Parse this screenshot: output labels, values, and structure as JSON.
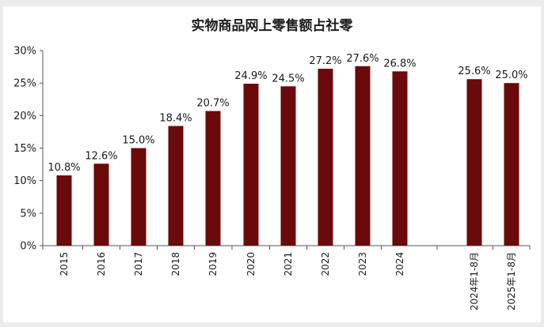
{
  "chart_data": {
    "type": "bar",
    "title": "实物商品网上零售额占社零",
    "categories": [
      "2015",
      "2016",
      "2017",
      "2018",
      "2019",
      "2020",
      "2021",
      "2022",
      "2023",
      "2024",
      "2024年1-8月",
      "2025年1-8月"
    ],
    "values": [
      10.8,
      12.6,
      15.0,
      18.4,
      20.7,
      24.9,
      24.5,
      27.2,
      27.6,
      26.8,
      25.6,
      25.0
    ],
    "data_labels": [
      "10.8%",
      "12.6%",
      "15.0%",
      "18.4%",
      "20.7%",
      "24.9%",
      "24.5%",
      "27.2%",
      "27.6%",
      "26.8%",
      "25.6%",
      "25.0%"
    ],
    "yticks": [
      "0%",
      "5%",
      "10%",
      "15%",
      "20%",
      "25%",
      "30%"
    ],
    "ylim": [
      0,
      30
    ],
    "xlabel": "",
    "ylabel": "",
    "bar_color": "#6b0a0a",
    "grid": false,
    "legend": "none"
  }
}
